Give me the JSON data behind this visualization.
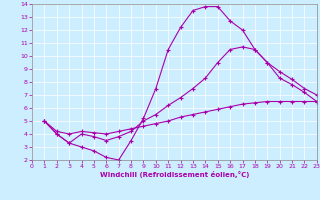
{
  "xlabel": "Windchill (Refroidissement éolien,°C)",
  "background_color": "#cceeff",
  "line_color": "#aa00aa",
  "xlim": [
    0,
    23
  ],
  "ylim": [
    2,
    14
  ],
  "xticks": [
    0,
    1,
    2,
    3,
    4,
    5,
    6,
    7,
    8,
    9,
    10,
    11,
    12,
    13,
    14,
    15,
    16,
    17,
    18,
    19,
    20,
    21,
    22,
    23
  ],
  "yticks": [
    2,
    3,
    4,
    5,
    6,
    7,
    8,
    9,
    10,
    11,
    12,
    13,
    14
  ],
  "line1_x": [
    1,
    2,
    3,
    4,
    5,
    6,
    7,
    8,
    9,
    10,
    11,
    12,
    13,
    14,
    15,
    16,
    17,
    18,
    19,
    20,
    21,
    22,
    23
  ],
  "line1_y": [
    5.0,
    4.0,
    3.3,
    3.0,
    2.7,
    2.2,
    2.0,
    3.5,
    5.2,
    7.5,
    10.5,
    12.2,
    13.5,
    13.8,
    13.8,
    12.7,
    12.0,
    10.5,
    9.5,
    8.3,
    7.8,
    7.2,
    6.5
  ],
  "line2_x": [
    1,
    2,
    3,
    4,
    5,
    6,
    7,
    8,
    9,
    10,
    11,
    12,
    13,
    14,
    15,
    16,
    17,
    18,
    19,
    20,
    21,
    22,
    23
  ],
  "line2_y": [
    5.0,
    4.0,
    3.3,
    4.0,
    3.8,
    3.5,
    3.8,
    4.2,
    5.0,
    5.5,
    6.2,
    6.8,
    7.5,
    8.3,
    9.5,
    10.5,
    10.7,
    10.5,
    9.5,
    8.8,
    8.2,
    7.5,
    7.0
  ],
  "line3_x": [
    1,
    2,
    3,
    4,
    5,
    6,
    7,
    8,
    9,
    10,
    11,
    12,
    13,
    14,
    15,
    16,
    17,
    18,
    19,
    20,
    21,
    22,
    23
  ],
  "line3_y": [
    5.0,
    4.2,
    4.0,
    4.2,
    4.1,
    4.0,
    4.2,
    4.4,
    4.6,
    4.8,
    5.0,
    5.3,
    5.5,
    5.7,
    5.9,
    6.1,
    6.3,
    6.4,
    6.5,
    6.5,
    6.5,
    6.5,
    6.5
  ]
}
